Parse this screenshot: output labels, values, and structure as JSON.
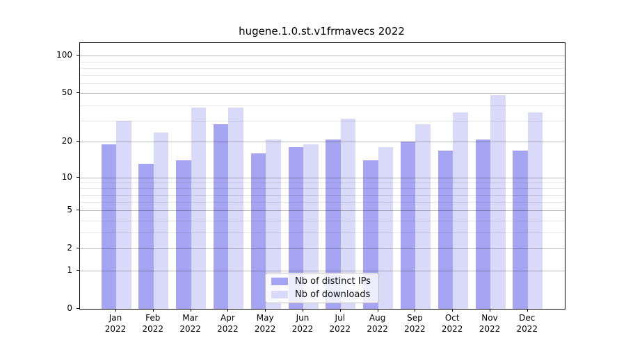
{
  "chart_data": {
    "type": "bar",
    "title": "hugene.1.0.st.v1frmavecs 2022",
    "categories": [
      "Jan",
      "Feb",
      "Mar",
      "Apr",
      "May",
      "Jun",
      "Jul",
      "Aug",
      "Sep",
      "Oct",
      "Nov",
      "Dec"
    ],
    "year_label": "2022",
    "series": [
      {
        "name": "Nb of distinct IPs",
        "color": "#a5a5f3",
        "values": [
          19,
          13,
          14,
          28,
          16,
          18,
          21,
          14,
          20,
          17,
          21,
          17
        ]
      },
      {
        "name": "Nb of downloads",
        "color": "#d9d9f9",
        "values": [
          30,
          24,
          38,
          38,
          21,
          19,
          31,
          18,
          28,
          35,
          48,
          35
        ]
      }
    ],
    "y_axis": {
      "scale": "log10(value+1)",
      "ticks": [
        0,
        1,
        2,
        5,
        10,
        20,
        50,
        100
      ],
      "minor_gridlines": [
        3,
        4,
        6,
        7,
        8,
        9,
        30,
        40,
        60,
        70,
        80,
        90
      ],
      "range_top": 126
    },
    "x_axis": {
      "tick_label_line2": "2022"
    },
    "legend": {
      "position": "lower center",
      "entries": [
        "Nb of distinct IPs",
        "Nb of downloads"
      ]
    },
    "grid": "on",
    "background": "#ffffff"
  }
}
